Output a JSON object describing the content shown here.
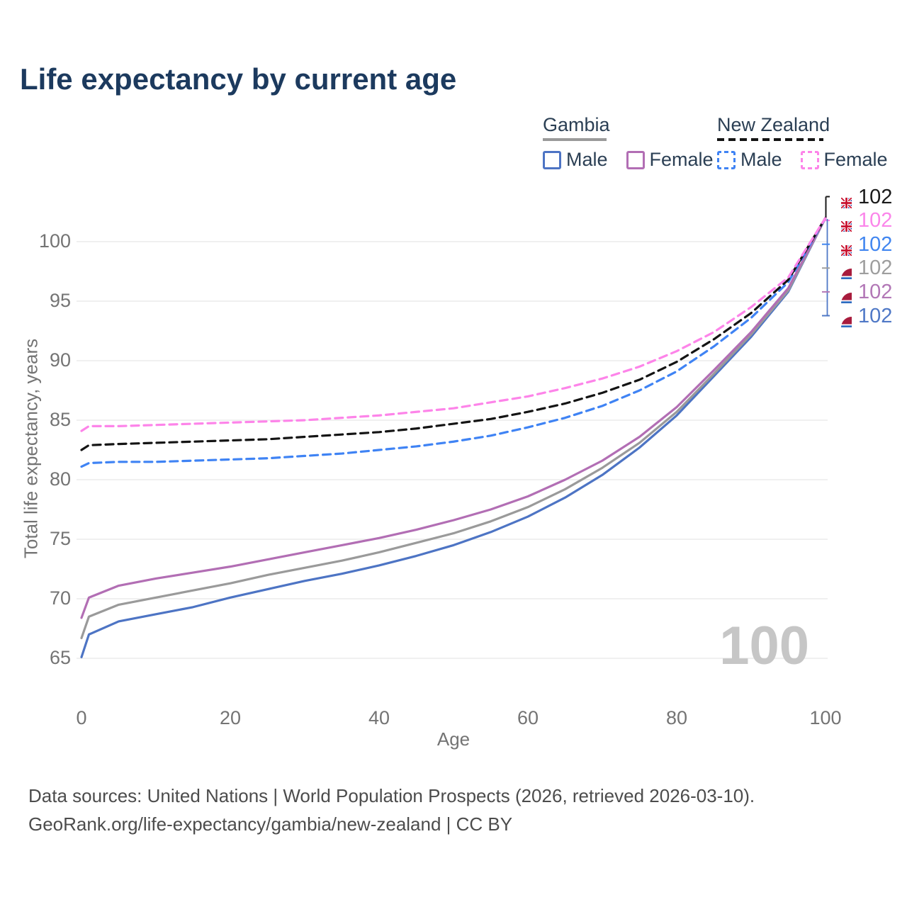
{
  "title": "Life expectancy by current age",
  "legend": {
    "groups": [
      {
        "name": "Gambia",
        "items": [
          {
            "label": "Male"
          },
          {
            "label": "Female"
          }
        ]
      },
      {
        "name": "New Zealand",
        "items": [
          {
            "label": "Male"
          },
          {
            "label": "Female"
          }
        ]
      }
    ]
  },
  "chart_data": {
    "type": "line",
    "title": "Life expectancy by current age",
    "xlabel": "Age",
    "ylabel": "Total life expectancy, years",
    "xlim": [
      0,
      100
    ],
    "ylim": [
      63,
      103
    ],
    "x_ticks": [
      0,
      20,
      40,
      60,
      80,
      100
    ],
    "y_ticks": [
      65,
      70,
      75,
      80,
      85,
      90,
      95,
      100
    ],
    "grid": "horizontal",
    "gridline_color": "#ececec",
    "x": [
      0,
      1,
      5,
      10,
      15,
      20,
      25,
      30,
      35,
      40,
      45,
      50,
      55,
      60,
      65,
      70,
      75,
      80,
      85,
      90,
      95,
      100
    ],
    "series": [
      {
        "name": "Gambia Male",
        "country": "Gambia",
        "sex": "Male",
        "style": "solid",
        "color": "#4d74c4",
        "values": [
          65.1,
          67.0,
          68.1,
          68.7,
          69.3,
          70.1,
          70.8,
          71.5,
          72.1,
          72.8,
          73.6,
          74.5,
          75.6,
          76.9,
          78.5,
          80.4,
          82.7,
          85.4,
          88.7,
          92.0,
          95.8,
          102.0
        ]
      },
      {
        "name": "Gambia Both sexes",
        "country": "Gambia",
        "sex": "Both",
        "style": "solid",
        "color": "#9a9a9a",
        "values": [
          66.7,
          68.5,
          69.5,
          70.1,
          70.7,
          71.3,
          72.0,
          72.6,
          73.2,
          73.9,
          74.7,
          75.5,
          76.5,
          77.7,
          79.2,
          81.0,
          83.1,
          85.7,
          88.9,
          92.2,
          95.9,
          102.0
        ]
      },
      {
        "name": "Gambia Female",
        "country": "Gambia",
        "sex": "Female",
        "style": "solid",
        "color": "#b26eb4",
        "values": [
          68.4,
          70.1,
          71.1,
          71.7,
          72.2,
          72.7,
          73.3,
          73.9,
          74.5,
          75.1,
          75.8,
          76.6,
          77.5,
          78.6,
          80.0,
          81.6,
          83.6,
          86.1,
          89.2,
          92.4,
          96.1,
          102.0
        ]
      },
      {
        "name": "New Zealand Male",
        "country": "New Zealand",
        "sex": "Male",
        "style": "dashed",
        "color": "#3f83f4",
        "values": [
          81.1,
          81.4,
          81.5,
          81.5,
          81.6,
          81.7,
          81.8,
          82.0,
          82.2,
          82.5,
          82.8,
          83.2,
          83.7,
          84.4,
          85.2,
          86.2,
          87.5,
          89.1,
          91.2,
          93.6,
          96.6,
          102.0
        ]
      },
      {
        "name": "New Zealand Both sexes",
        "country": "New Zealand",
        "sex": "Both",
        "style": "dashed",
        "color": "#141414",
        "values": [
          82.5,
          82.9,
          83.0,
          83.1,
          83.2,
          83.3,
          83.4,
          83.6,
          83.8,
          84.0,
          84.3,
          84.7,
          85.1,
          85.7,
          86.4,
          87.3,
          88.4,
          89.9,
          91.8,
          94.0,
          96.8,
          102.0
        ]
      },
      {
        "name": "New Zealand Female",
        "country": "New Zealand",
        "sex": "Female",
        "style": "dashed",
        "color": "#fd84e9",
        "values": [
          84.1,
          84.5,
          84.5,
          84.6,
          84.7,
          84.8,
          84.9,
          85.0,
          85.2,
          85.4,
          85.7,
          86.0,
          86.5,
          87.0,
          87.7,
          88.5,
          89.5,
          90.8,
          92.4,
          94.5,
          97.0,
          102.0
        ]
      }
    ],
    "end_labels": [
      {
        "flag": "new-zealand",
        "value": "102",
        "color": "#1a1a1a"
      },
      {
        "flag": "new-zealand",
        "value": "102",
        "color": "#fb86ea"
      },
      {
        "flag": "new-zealand",
        "value": "102",
        "color": "#4186f0"
      },
      {
        "flag": "gambia",
        "value": "102",
        "color": "#9e9e9e"
      },
      {
        "flag": "gambia",
        "value": "102",
        "color": "#b277b6"
      },
      {
        "flag": "gambia",
        "value": "102",
        "color": "#4f78c6"
      }
    ],
    "age_counter": "100",
    "legend_position": "top-right"
  },
  "footer": {
    "line1": "Data sources: United Nations | World Population Prospects (2026, retrieved 2026-03-10).",
    "line2": "GeoRank.org/life-expectancy/gambia/new-zealand | CC BY"
  }
}
